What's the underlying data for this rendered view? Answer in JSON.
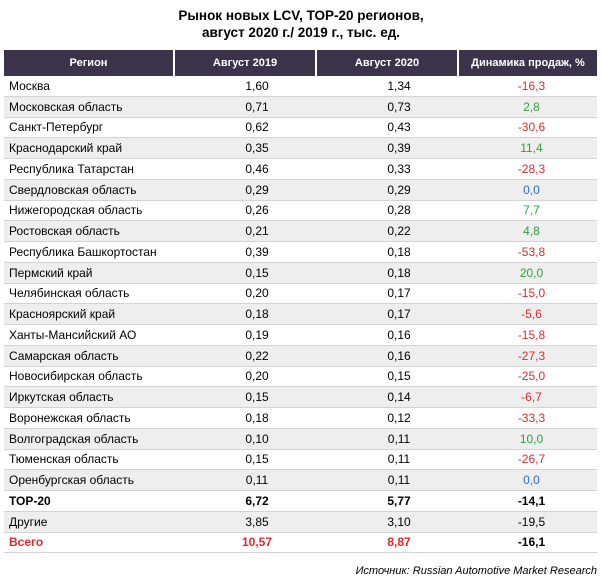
{
  "chart_data": {
    "type": "table",
    "title": [
      "Рынок новых LCV, ТОР-20 регионов,",
      "август 2020 г./ 2019 г., тыс. ед."
    ],
    "columns": [
      "Регион",
      "Август 2019",
      "Август 2020",
      "Динамика продаж, %"
    ],
    "rows": [
      {
        "region": "Москва",
        "aug2019": "1,60",
        "aug2020": "1,34",
        "dyn": "-16,3",
        "dyn_style": "neg"
      },
      {
        "region": "Московская область",
        "aug2019": "0,71",
        "aug2020": "0,73",
        "dyn": "2,8",
        "dyn_style": "pos"
      },
      {
        "region": "Санкт-Петербург",
        "aug2019": "0,62",
        "aug2020": "0,43",
        "dyn": "-30,6",
        "dyn_style": "neg"
      },
      {
        "region": "Краснодарский край",
        "aug2019": "0,35",
        "aug2020": "0,39",
        "dyn": "11,4",
        "dyn_style": "pos"
      },
      {
        "region": "Республика Татарстан",
        "aug2019": "0,46",
        "aug2020": "0,33",
        "dyn": "-28,3",
        "dyn_style": "neg"
      },
      {
        "region": "Свердловская область",
        "aug2019": "0,29",
        "aug2020": "0,29",
        "dyn": "0,0",
        "dyn_style": "zero"
      },
      {
        "region": "Нижегородская область",
        "aug2019": "0,26",
        "aug2020": "0,28",
        "dyn": "7,7",
        "dyn_style": "pos"
      },
      {
        "region": "Ростовская область",
        "aug2019": "0,21",
        "aug2020": "0,22",
        "dyn": "4,8",
        "dyn_style": "pos"
      },
      {
        "region": "Республика Башкортостан",
        "aug2019": "0,39",
        "aug2020": "0,18",
        "dyn": "-53,8",
        "dyn_style": "neg"
      },
      {
        "region": "Пермский край",
        "aug2019": "0,15",
        "aug2020": "0,18",
        "dyn": "20,0",
        "dyn_style": "pos"
      },
      {
        "region": "Челябинская область",
        "aug2019": "0,20",
        "aug2020": "0,17",
        "dyn": "-15,0",
        "dyn_style": "neg"
      },
      {
        "region": "Красноярский край",
        "aug2019": "0,18",
        "aug2020": "0,17",
        "dyn": "-5,6",
        "dyn_style": "neg"
      },
      {
        "region": "Ханты-Мансийский АО",
        "aug2019": "0,19",
        "aug2020": "0,16",
        "dyn": "-15,8",
        "dyn_style": "neg"
      },
      {
        "region": "Самарская область",
        "aug2019": "0,22",
        "aug2020": "0,16",
        "dyn": "-27,3",
        "dyn_style": "neg"
      },
      {
        "region": "Новосибирская область",
        "aug2019": "0,20",
        "aug2020": "0,15",
        "dyn": "-25,0",
        "dyn_style": "neg"
      },
      {
        "region": "Иркутская область",
        "aug2019": "0,15",
        "aug2020": "0,14",
        "dyn": "-6,7",
        "dyn_style": "neg"
      },
      {
        "region": "Воронежская область",
        "aug2019": "0,18",
        "aug2020": "0,12",
        "dyn": "-33,3",
        "dyn_style": "neg"
      },
      {
        "region": "Волгоградская область",
        "aug2019": "0,10",
        "aug2020": "0,11",
        "dyn": "10,0",
        "dyn_style": "pos"
      },
      {
        "region": "Тюменская область",
        "aug2019": "0,15",
        "aug2020": "0,11",
        "dyn": "-26,7",
        "dyn_style": "neg"
      },
      {
        "region": "Оренбургская область",
        "aug2019": "0,11",
        "aug2020": "0,11",
        "dyn": "0,0",
        "dyn_style": "zero"
      }
    ],
    "summary_rows": [
      {
        "region": "ТОР-20",
        "aug2019": "6,72",
        "aug2020": "5,77",
        "dyn": "-14,1",
        "kind": "top"
      },
      {
        "region": "Другие",
        "aug2019": "3,85",
        "aug2020": "3,10",
        "dyn": "-19,5",
        "kind": "other"
      },
      {
        "region": "Всего",
        "aug2019": "10,57",
        "aug2020": "8,87",
        "dyn": "-16,1",
        "kind": "total"
      }
    ],
    "source": "Источник: Russian Automotive Market Research"
  },
  "colors": {
    "header_bg": "#3b3349",
    "negative": "#e0282e",
    "positive": "#2aa43b",
    "zero": "#2b6cd6",
    "row_shade": "#eeeeee"
  }
}
